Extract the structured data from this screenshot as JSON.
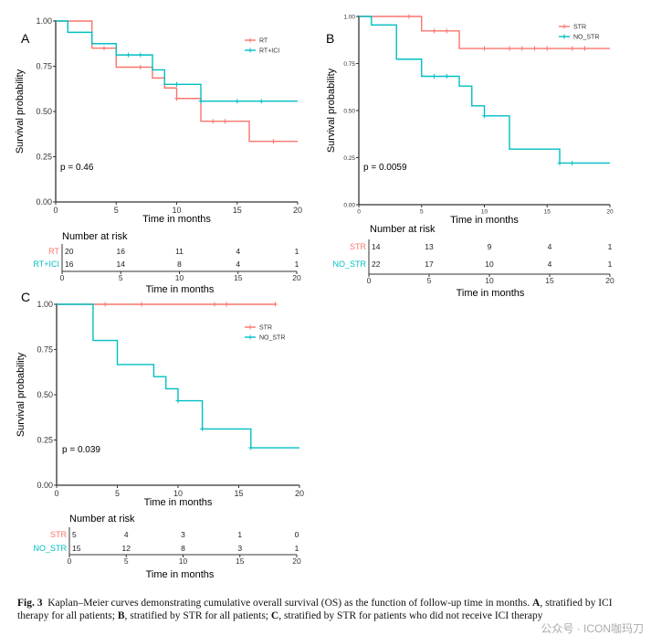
{
  "colors": {
    "group1": "#F8766D",
    "group2": "#00BFC4",
    "axis": "#333333"
  },
  "chart_data": [
    {
      "panel": "A",
      "type": "line",
      "subtype": "kaplan-meier step",
      "xlabel": "Time in months",
      "ylabel": "Survival probability",
      "xlim": [
        0,
        20
      ],
      "ylim": [
        0,
        1
      ],
      "xticks": [
        "0",
        "5",
        "10",
        "15",
        "20"
      ],
      "yticks": [
        "0.00",
        "0.25",
        "0.50",
        "0.75",
        "1.00"
      ],
      "pvalue": "p = 0.46",
      "legend_position": "top-right",
      "series": [
        {
          "name": "RT",
          "steps": [
            [
              0,
              1
            ],
            [
              3,
              0.85
            ],
            [
              5,
              0.745
            ],
            [
              8,
              0.685
            ],
            [
              9,
              0.63
            ],
            [
              10,
              0.572
            ],
            [
              12,
              0.446
            ],
            [
              16,
              0.335
            ],
            [
              20,
              0.335
            ]
          ],
          "censors": [
            4,
            7,
            10,
            13,
            14,
            18
          ]
        },
        {
          "name": "RT+ICI",
          "steps": [
            [
              0,
              1
            ],
            [
              1,
              0.9375
            ],
            [
              3,
              0.875
            ],
            [
              5,
              0.8125
            ],
            [
              8,
              0.73
            ],
            [
              9,
              0.65
            ],
            [
              12,
              0.557
            ],
            [
              20,
              0.557
            ]
          ],
          "censors": [
            6,
            7,
            10,
            12,
            15,
            17
          ]
        }
      ],
      "risk_table": {
        "title": "Number at risk",
        "times": [
          "0",
          "5",
          "10",
          "15",
          "20"
        ],
        "rows": [
          {
            "label": "RT",
            "values": [
              "20",
              "16",
              "11",
              "4",
              "1"
            ]
          },
          {
            "label": "RT+ICI",
            "values": [
              "16",
              "14",
              "8",
              "4",
              "1"
            ]
          }
        ],
        "xlabel": "Time in months"
      }
    },
    {
      "panel": "B",
      "type": "line",
      "subtype": "kaplan-meier step",
      "xlabel": "Time in months",
      "ylabel": "Survival probability",
      "xlim": [
        0,
        20
      ],
      "ylim": [
        0,
        1
      ],
      "xticks": [
        "0",
        "5",
        "10",
        "15",
        "20"
      ],
      "yticks": [
        "0.00",
        "0.25",
        "0.50",
        "0.75",
        "1.00"
      ],
      "pvalue": "p = 0.0059",
      "legend_position": "top-right",
      "series": [
        {
          "name": "STR",
          "steps": [
            [
              0,
              1
            ],
            [
              5,
              0.923
            ],
            [
              8,
              0.83
            ],
            [
              20,
              0.83
            ]
          ],
          "censors": [
            4,
            6,
            7,
            10,
            12,
            13,
            14,
            15,
            17,
            18
          ]
        },
        {
          "name": "NO_STR",
          "steps": [
            [
              0,
              1
            ],
            [
              1,
              0.955
            ],
            [
              3,
              0.773
            ],
            [
              5,
              0.682
            ],
            [
              8,
              0.63
            ],
            [
              9,
              0.525
            ],
            [
              10,
              0.472
            ],
            [
              12,
              0.295
            ],
            [
              16,
              0.221
            ],
            [
              20,
              0.221
            ]
          ],
          "censors": [
            6,
            7,
            10,
            16,
            17
          ]
        }
      ],
      "risk_table": {
        "title": "Number at risk",
        "times": [
          "0",
          "5",
          "10",
          "15",
          "20"
        ],
        "rows": [
          {
            "label": "STR",
            "values": [
              "14",
              "13",
              "9",
              "4",
              "1"
            ]
          },
          {
            "label": "NO_STR",
            "values": [
              "22",
              "17",
              "10",
              "4",
              "1"
            ]
          }
        ],
        "xlabel": "Time in months"
      }
    },
    {
      "panel": "C",
      "type": "line",
      "subtype": "kaplan-meier step",
      "xlabel": "Time in months",
      "ylabel": "Survival probability",
      "xlim": [
        0,
        20
      ],
      "ylim": [
        0,
        1
      ],
      "xticks": [
        "0",
        "5",
        "10",
        "15",
        "20"
      ],
      "yticks": [
        "0.00",
        "0.25",
        "0.50",
        "0.75",
        "1.00"
      ],
      "pvalue": "p = 0.039",
      "legend_position": "top-right",
      "series": [
        {
          "name": "STR",
          "steps": [
            [
              0,
              1
            ],
            [
              18,
              1
            ]
          ],
          "censors": [
            4,
            7,
            13,
            14,
            18
          ]
        },
        {
          "name": "NO_STR",
          "steps": [
            [
              0,
              1
            ],
            [
              3,
              0.8
            ],
            [
              5,
              0.667
            ],
            [
              8,
              0.6
            ],
            [
              9,
              0.533
            ],
            [
              10,
              0.467
            ],
            [
              12,
              0.311
            ],
            [
              16,
              0.207
            ],
            [
              20,
              0.207
            ]
          ],
          "censors": [
            10,
            12,
            16
          ]
        }
      ],
      "risk_table": {
        "title": "Number at risk",
        "times": [
          "0",
          "5",
          "10",
          "15",
          "20"
        ],
        "rows": [
          {
            "label": "STR",
            "values": [
              "5",
              "4",
              "3",
              "1",
              "0"
            ]
          },
          {
            "label": "NO_STR",
            "values": [
              "15",
              "12",
              "8",
              "3",
              "1"
            ]
          }
        ],
        "xlabel": "Time in months"
      }
    }
  ],
  "caption": {
    "label": "Fig. 3",
    "text1": "Kaplan–Meier curves demonstrating cumulative overall survival (OS) as the function of follow-up time in months.",
    "a": "A",
    "text2": ", stratified by ICI therapy for all patients;",
    "b": "B",
    "text3": ", stratified by STR for all patients;",
    "c": "C",
    "text4": ", stratified by STR for patients who did not receive ICI therapy"
  },
  "watermark": "公众号 · ICON咖玛刀"
}
